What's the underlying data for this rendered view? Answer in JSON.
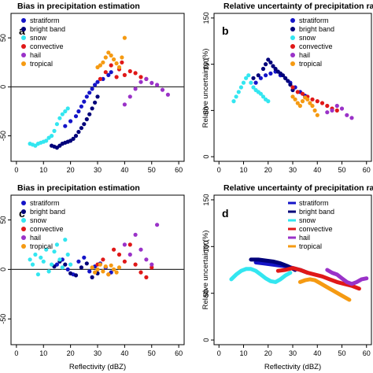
{
  "colors": {
    "stratiform": "#1414c8",
    "bright band": "#00007a",
    "snow": "#33e6f0",
    "convective": "#e01818",
    "hail": "#9a32c8",
    "tropical": "#f59a12"
  },
  "chart_data": [
    {
      "panel": "a",
      "type": "scatter",
      "title": "Bias in precipitation estimation",
      "xlabel": "",
      "ylabel": "",
      "xlim": [
        -2,
        62
      ],
      "ylim": [
        -76,
        75
      ],
      "xticks": [
        "0",
        "10",
        "20",
        "30",
        "40",
        "50",
        "60"
      ],
      "yticks": [
        "-50",
        "0",
        "50"
      ],
      "hline": 0,
      "legend_position": "top-left",
      "series": [
        {
          "name": "stratiform",
          "x": [
            18,
            20,
            22,
            23,
            24,
            25,
            26,
            27,
            28,
            29,
            30,
            32,
            34,
            35
          ],
          "y": [
            -40,
            -35,
            -30,
            -25,
            -20,
            -15,
            -10,
            -6,
            -2,
            2,
            5,
            8,
            12,
            15
          ]
        },
        {
          "name": "bright band",
          "x": [
            13,
            14,
            15,
            16,
            17,
            18,
            19,
            20,
            21,
            22,
            23,
            24,
            25,
            26,
            27,
            28,
            29,
            30
          ],
          "y": [
            -60,
            -61,
            -62,
            -60,
            -58,
            -57,
            -56,
            -55,
            -53,
            -50,
            -46,
            -42,
            -38,
            -33,
            -28,
            -22,
            -16,
            -10
          ]
        },
        {
          "name": "snow",
          "x": [
            5,
            6,
            7,
            8,
            9,
            10,
            11,
            12,
            13,
            14,
            15,
            16,
            17,
            18,
            19
          ],
          "y": [
            -58,
            -59,
            -60,
            -58,
            -57,
            -56,
            -55,
            -52,
            -50,
            -45,
            -38,
            -32,
            -28,
            -25,
            -22
          ]
        },
        {
          "name": "convective",
          "x": [
            31,
            33,
            35,
            37,
            38,
            39,
            40,
            42,
            44,
            46,
            48
          ],
          "y": [
            8,
            15,
            22,
            10,
            18,
            25,
            12,
            16,
            14,
            10,
            8
          ]
        },
        {
          "name": "hail",
          "x": [
            40,
            42,
            44,
            46,
            48,
            50,
            52,
            54,
            56
          ],
          "y": [
            -18,
            -10,
            -2,
            5,
            8,
            4,
            2,
            -3,
            -8
          ]
        },
        {
          "name": "tropical",
          "x": [
            30,
            31,
            32,
            33,
            34,
            35,
            36,
            37,
            38,
            39,
            40
          ],
          "y": [
            20,
            22,
            25,
            30,
            35,
            32,
            28,
            24,
            20,
            30,
            50
          ]
        }
      ]
    },
    {
      "panel": "b",
      "type": "scatter",
      "title": "Relative uncertainty of precipitation rate",
      "xlabel": "",
      "ylabel": "Relative uncertainty (%)",
      "xlim": [
        -2,
        62
      ],
      "ylim": [
        -5,
        155
      ],
      "xticks": [
        "0",
        "10",
        "20",
        "30",
        "40",
        "50",
        "60"
      ],
      "yticks": [
        "0",
        "50",
        "100",
        "150"
      ],
      "legend_position": "top-right",
      "series": [
        {
          "name": "stratiform",
          "x": [
            15,
            17,
            19,
            21,
            23,
            25,
            27,
            29,
            31,
            33,
            35
          ],
          "y": [
            80,
            85,
            88,
            90,
            92,
            88,
            85,
            80,
            75,
            70,
            66
          ]
        },
        {
          "name": "bright band",
          "x": [
            14,
            16,
            18,
            19,
            20,
            21,
            22,
            23,
            24,
            25,
            26,
            27,
            28,
            29,
            30
          ],
          "y": [
            85,
            88,
            95,
            100,
            105,
            102,
            98,
            95,
            92,
            90,
            88,
            85,
            82,
            78,
            72
          ]
        },
        {
          "name": "snow",
          "x": [
            6,
            7,
            8,
            9,
            10,
            11,
            12,
            13,
            14,
            15,
            16,
            17,
            18,
            19,
            20
          ],
          "y": [
            60,
            65,
            70,
            75,
            80,
            85,
            88,
            80,
            75,
            72,
            70,
            68,
            65,
            62,
            60
          ]
        },
        {
          "name": "convective",
          "x": [
            30,
            32,
            34,
            36,
            38,
            40,
            42,
            44,
            46,
            48
          ],
          "y": [
            75,
            70,
            68,
            65,
            62,
            60,
            58,
            55,
            52,
            50
          ]
        },
        {
          "name": "hail",
          "x": [
            44,
            46,
            48,
            50,
            52,
            54
          ],
          "y": [
            48,
            50,
            55,
            52,
            45,
            42
          ]
        },
        {
          "name": "tropical",
          "x": [
            30,
            31,
            32,
            33,
            34,
            35,
            36,
            37,
            38,
            39,
            40
          ],
          "y": [
            65,
            62,
            58,
            55,
            60,
            64,
            62,
            58,
            55,
            50,
            45
          ]
        }
      ]
    },
    {
      "panel": "c",
      "type": "scatter",
      "title": "Bias in precipitation estimation",
      "xlabel": "Reflectivity (dBZ)",
      "ylabel": "",
      "xlim": [
        -2,
        62
      ],
      "ylim": [
        -76,
        75
      ],
      "xticks": [
        "0",
        "10",
        "20",
        "30",
        "40",
        "50",
        "60"
      ],
      "yticks": [
        "-50",
        "0",
        "50"
      ],
      "hline": 0,
      "legend_position": "top-left",
      "series": [
        {
          "name": "stratiform",
          "x": [
            15,
            17,
            19,
            21,
            23,
            25,
            27,
            29,
            31,
            33,
            35
          ],
          "y": [
            5,
            10,
            0,
            -5,
            8,
            12,
            -2,
            3,
            6,
            2,
            -3
          ]
        },
        {
          "name": "bright band",
          "x": [
            14,
            16,
            18,
            20,
            22,
            24,
            26,
            28,
            30
          ],
          "y": [
            3,
            8,
            5,
            -4,
            -6,
            2,
            6,
            -8,
            -4
          ]
        },
        {
          "name": "snow",
          "x": [
            5,
            6,
            7,
            8,
            9,
            10,
            11,
            12,
            13,
            14,
            15,
            16,
            17,
            18,
            19,
            20
          ],
          "y": [
            10,
            5,
            15,
            -5,
            12,
            8,
            20,
            -2,
            5,
            18,
            25,
            10,
            2,
            30,
            15,
            5
          ]
        },
        {
          "name": "convective",
          "x": [
            30,
            32,
            34,
            36,
            38,
            40,
            42,
            44,
            46,
            48,
            50
          ],
          "y": [
            5,
            10,
            -5,
            20,
            15,
            8,
            25,
            5,
            -3,
            -8,
            2
          ]
        },
        {
          "name": "hail",
          "x": [
            40,
            42,
            44,
            46,
            48,
            50,
            52
          ],
          "y": [
            25,
            15,
            35,
            20,
            10,
            5,
            45
          ]
        },
        {
          "name": "tropical",
          "x": [
            28,
            29,
            30,
            31,
            32,
            33,
            34,
            35,
            36,
            37,
            38
          ],
          "y": [
            2,
            -3,
            0,
            5,
            -2,
            3,
            -5,
            4,
            0,
            -3,
            2
          ]
        }
      ]
    },
    {
      "panel": "d",
      "type": "line",
      "title": "Relative uncertainty of precipitation rate",
      "xlabel": "Reflectivity (dBZ)",
      "ylabel": "Relative uncertainty (%)",
      "xlim": [
        -2,
        62
      ],
      "ylim": [
        -5,
        155
      ],
      "xticks": [
        "0",
        "10",
        "20",
        "30",
        "40",
        "50",
        "60"
      ],
      "yticks": [
        "0",
        "50",
        "100",
        "150"
      ],
      "legend_position": "top-right",
      "series": [
        {
          "name": "stratiform",
          "x": [
            15,
            18,
            21,
            24,
            27,
            30,
            33,
            36
          ],
          "y": [
            83,
            82,
            81,
            80,
            79,
            77,
            75,
            72
          ]
        },
        {
          "name": "bright band",
          "x": [
            13,
            16,
            19,
            22,
            25,
            28,
            31
          ],
          "y": [
            86,
            86,
            85,
            84,
            82,
            79,
            75
          ]
        },
        {
          "name": "snow",
          "x": [
            5,
            7,
            9,
            11,
            13,
            15,
            17,
            19,
            21,
            23,
            25,
            27,
            29
          ],
          "y": [
            65,
            70,
            74,
            76,
            76,
            74,
            70,
            66,
            63,
            62,
            65,
            69,
            72
          ]
        },
        {
          "name": "convective",
          "x": [
            24,
            27,
            30,
            33,
            36,
            39,
            42,
            45,
            48,
            51,
            54,
            57
          ],
          "y": [
            74,
            75,
            77,
            75,
            72,
            70,
            68,
            65,
            62,
            60,
            58,
            55
          ]
        },
        {
          "name": "hail",
          "x": [
            44,
            46,
            48,
            50,
            52,
            54,
            56,
            58,
            60
          ],
          "y": [
            75,
            72,
            70,
            66,
            62,
            60,
            62,
            65,
            66
          ]
        },
        {
          "name": "tropical",
          "x": [
            33,
            35,
            37,
            39,
            41,
            43,
            45,
            47,
            49,
            51,
            53
          ],
          "y": [
            62,
            64,
            65,
            64,
            61,
            58,
            55,
            52,
            49,
            46,
            43
          ]
        }
      ]
    }
  ]
}
